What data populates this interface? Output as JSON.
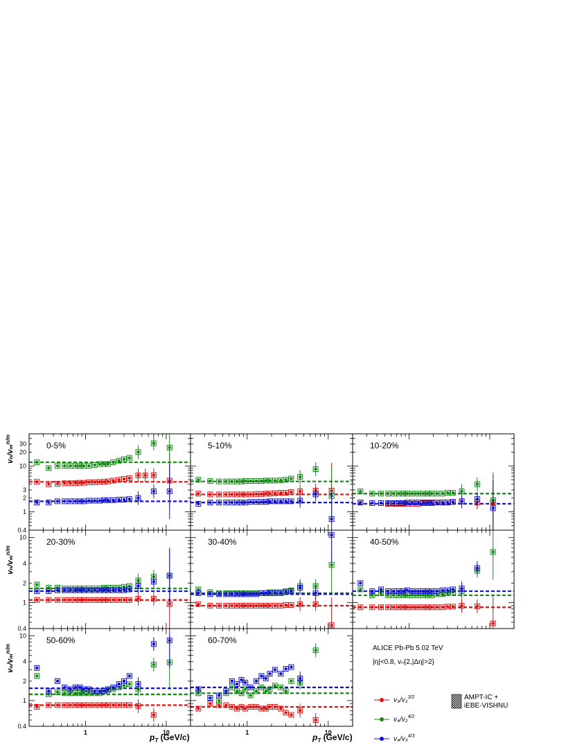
{
  "figure": {
    "experiment": "ALICE Pb-Pb 5.02 TeV",
    "selection": "|η|<0.8, vₙ{2,|Δη|>2}",
    "ylabel_main": "vₙ/vₘ",
    "ylabel_sup": "n/m",
    "xlabel_main": "p",
    "xlabel_sub": "T",
    "xlabel_unit": " (GeV/c)",
    "model_label_1": "AMPT-IC +",
    "model_label_2": "iEBE-VISHNU",
    "legend": [
      {
        "label": "v₃/v₂",
        "sup": "3/2",
        "color": "#dd1111"
      },
      {
        "label": "v₄/v₂",
        "sup": "4/2",
        "color": "#118811"
      },
      {
        "label": "v₄/v₃",
        "sup": "4/3",
        "color": "#1111cc"
      }
    ]
  },
  "chart_data": {
    "type": "scatter",
    "x_scale": "log",
    "y_scale": "log",
    "xlim": [
      0.2,
      20
    ],
    "ylim_top_row": [
      0.4,
      50
    ],
    "ylim_other_rows": [
      0.4,
      13
    ],
    "x_ticks": [
      1,
      10
    ],
    "x_tick_labels": [
      "1",
      "10"
    ],
    "y_ticks_top_row": [
      0.4,
      1,
      2,
      3,
      10,
      20,
      30
    ],
    "y_ticks_other_rows": [
      0.4,
      1,
      2,
      4,
      10
    ],
    "x_points": [
      0.25,
      0.35,
      0.45,
      0.55,
      0.65,
      0.75,
      0.85,
      0.95,
      1.1,
      1.3,
      1.5,
      1.7,
      1.9,
      2.2,
      2.6,
      3.0,
      3.5,
      4.5,
      5.5,
      7.0,
      11.0
    ],
    "series_colors": {
      "v3_v2": "#dd1111",
      "v4_v2": "#118811",
      "v4_v3": "#1111cc"
    },
    "panels": [
      {
        "label": "0-5%",
        "v3_v2": {
          "values": [
            4.5,
            4.0,
            4.1,
            4.2,
            4.2,
            4.2,
            4.3,
            4.3,
            4.4,
            4.4,
            4.5,
            4.5,
            4.6,
            4.8,
            5.0,
            5.2,
            5.4,
            6.2,
            6.2,
            6.3,
            4.8
          ],
          "ref": 4.5
        },
        "v4_v2": {
          "values": [
            12,
            9,
            10,
            10,
            10,
            10,
            10,
            10,
            10,
            10.5,
            11,
            11,
            11,
            12,
            13,
            14,
            15,
            20,
            null,
            31,
            25
          ],
          "ref": 12
        },
        "v4_v3": {
          "values": [
            1.6,
            1.6,
            1.7,
            1.7,
            1.7,
            1.7,
            1.7,
            1.7,
            1.75,
            1.75,
            1.75,
            1.8,
            1.8,
            1.8,
            1.85,
            1.85,
            1.9,
            2.0,
            null,
            2.8,
            2.8
          ],
          "ref": 1.7
        }
      },
      {
        "label": "5-10%",
        "v3_v2": {
          "values": [
            2.5,
            2.4,
            2.4,
            2.4,
            2.4,
            2.4,
            2.4,
            2.4,
            2.4,
            2.45,
            2.45,
            2.5,
            2.5,
            2.55,
            2.6,
            2.6,
            2.7,
            2.8,
            null,
            2.9,
            2.9
          ],
          "ref": 2.4
        },
        "v4_v2": {
          "values": [
            5.0,
            4.7,
            4.6,
            4.6,
            4.6,
            4.6,
            4.6,
            4.7,
            4.7,
            4.7,
            4.7,
            4.8,
            4.8,
            4.8,
            4.9,
            5.0,
            5.3,
            5.8,
            null,
            8.5,
            2.2
          ],
          "ref": 4.6
        },
        "v4_v3": {
          "values": [
            1.5,
            1.6,
            1.6,
            1.6,
            1.6,
            1.6,
            1.6,
            1.6,
            1.65,
            1.65,
            1.65,
            1.65,
            1.7,
            1.7,
            1.7,
            1.7,
            1.7,
            1.75,
            null,
            2.4,
            0.7
          ],
          "ref": 1.6
        }
      },
      {
        "label": "10-20%",
        "v3_v2": {
          "values": [
            1.6,
            1.55,
            1.55,
            1.5,
            1.5,
            1.5,
            1.5,
            1.5,
            1.5,
            1.5,
            1.55,
            1.55,
            1.55,
            1.6,
            1.6,
            1.6,
            1.65,
            1.7,
            null,
            1.6,
            1.6
          ],
          "ref": 1.5
        },
        "v4_v2": {
          "values": [
            2.8,
            2.5,
            2.5,
            2.5,
            2.5,
            2.5,
            2.5,
            2.5,
            2.5,
            2.5,
            2.5,
            2.5,
            2.5,
            2.5,
            2.5,
            2.6,
            2.6,
            2.8,
            null,
            4.0,
            1.8
          ],
          "ref": 2.5
        },
        "v4_v3": {
          "values": [
            1.6,
            1.55,
            1.55,
            1.55,
            1.55,
            1.55,
            1.55,
            1.6,
            1.6,
            1.6,
            1.6,
            1.6,
            1.6,
            1.6,
            1.6,
            1.6,
            1.65,
            1.7,
            null,
            1.9,
            1.2
          ],
          "ref": 1.5
        }
      },
      {
        "label": "20-30%",
        "v3_v2": {
          "values": [
            1.1,
            1.1,
            1.1,
            1.1,
            1.1,
            1.1,
            1.1,
            1.1,
            1.1,
            1.1,
            1.1,
            1.1,
            1.1,
            1.1,
            1.1,
            1.1,
            1.1,
            1.15,
            null,
            1.15,
            0.95
          ],
          "ref": 1.1
        },
        "v4_v2": {
          "values": [
            1.9,
            1.7,
            1.7,
            1.65,
            1.65,
            1.65,
            1.65,
            1.65,
            1.65,
            1.65,
            1.65,
            1.7,
            1.7,
            1.7,
            1.7,
            1.75,
            1.8,
            2.2,
            null,
            2.5,
            2.6
          ],
          "ref": 1.65
        },
        "v4_v3": {
          "values": [
            1.5,
            1.5,
            1.55,
            1.55,
            1.55,
            1.55,
            1.55,
            1.55,
            1.55,
            1.55,
            1.55,
            1.55,
            1.55,
            1.55,
            1.55,
            1.55,
            1.6,
            1.8,
            null,
            2.1,
            2.6
          ],
          "ref": 1.5
        }
      },
      {
        "label": "30-40%",
        "v3_v2": {
          "values": [
            0.95,
            0.9,
            0.9,
            0.9,
            0.9,
            0.9,
            0.9,
            0.9,
            0.9,
            0.9,
            0.9,
            0.9,
            0.9,
            0.9,
            0.9,
            0.92,
            0.92,
            0.95,
            null,
            0.95,
            0.45
          ],
          "ref": 0.9
        },
        "v4_v2": {
          "values": [
            1.6,
            1.45,
            1.4,
            1.4,
            1.4,
            1.4,
            1.4,
            1.4,
            1.4,
            1.4,
            1.4,
            1.4,
            1.45,
            1.45,
            1.45,
            1.5,
            1.55,
            1.8,
            null,
            1.8,
            3.8
          ],
          "ref": 1.4
        },
        "v4_v3": {
          "values": [
            1.4,
            1.35,
            1.35,
            1.35,
            1.35,
            1.35,
            1.35,
            1.35,
            1.35,
            1.35,
            1.4,
            1.4,
            1.4,
            1.4,
            1.4,
            1.45,
            1.5,
            1.7,
            null,
            1.4,
            11
          ],
          "ref": 1.35
        }
      },
      {
        "label": "40-50%",
        "v3_v2": {
          "values": [
            0.85,
            0.85,
            0.85,
            0.85,
            0.85,
            0.85,
            0.85,
            0.85,
            0.85,
            0.85,
            0.85,
            0.85,
            0.85,
            0.85,
            0.85,
            0.87,
            0.87,
            0.9,
            null,
            0.88,
            0.48
          ],
          "ref": 0.85
        },
        "v4_v2": {
          "values": [
            1.6,
            1.3,
            1.4,
            1.3,
            1.3,
            1.3,
            1.3,
            1.3,
            1.3,
            1.3,
            1.3,
            1.3,
            1.3,
            1.35,
            1.35,
            1.4,
            1.45,
            1.5,
            null,
            3.1,
            6.0
          ],
          "ref": 1.3
        },
        "v4_v3": {
          "values": [
            2.0,
            1.5,
            1.6,
            1.5,
            1.5,
            1.5,
            1.5,
            1.55,
            1.5,
            1.5,
            1.5,
            1.5,
            1.5,
            1.5,
            1.55,
            1.55,
            1.6,
            1.65,
            null,
            3.4,
            null
          ],
          "ref": 1.5
        }
      },
      {
        "label": "50-60%",
        "v3_v2": {
          "values": [
            0.8,
            0.85,
            0.85,
            0.85,
            0.85,
            0.85,
            0.85,
            0.85,
            0.85,
            0.85,
            0.85,
            0.85,
            0.85,
            0.85,
            0.85,
            0.85,
            0.85,
            0.82,
            null,
            0.6,
            null
          ],
          "ref": 0.85
        },
        "v4_v2": {
          "values": [
            2.4,
            1.25,
            1.35,
            1.3,
            1.3,
            1.3,
            1.3,
            1.3,
            1.3,
            1.3,
            1.3,
            1.4,
            1.45,
            1.5,
            1.6,
            1.7,
            1.8,
            1.5,
            null,
            3.6,
            3.9
          ],
          "ref": 1.25
        },
        "v4_v3": {
          "values": [
            3.2,
            1.4,
            2.0,
            1.6,
            1.5,
            1.6,
            1.6,
            1.5,
            1.5,
            1.4,
            1.4,
            1.4,
            1.5,
            1.6,
            1.8,
            2.0,
            2.4,
            1.8,
            null,
            7.5,
            8.5
          ],
          "ref": 1.55
        }
      },
      {
        "label": "60-70%",
        "v3_v2": {
          "values": [
            0.75,
            0.9,
            0.85,
            0.85,
            0.8,
            0.75,
            0.8,
            0.75,
            0.8,
            0.8,
            0.75,
            0.75,
            0.8,
            0.8,
            0.75,
            0.65,
            0.6,
            0.7,
            null,
            0.5,
            null
          ],
          "ref": 0.8
        },
        "v4_v2": {
          "values": [
            1.3,
            1.1,
            1.0,
            1.3,
            1.6,
            1.4,
            1.3,
            1.5,
            1.2,
            1.4,
            1.6,
            1.4,
            1.5,
            1.7,
            1.6,
            1.4,
            2.0,
            1.9,
            null,
            6.0,
            null
          ],
          "ref": 1.3
        },
        "v4_v3": {
          "values": [
            1.5,
            1.1,
            1.2,
            1.4,
            2.0,
            1.8,
            2.1,
            1.9,
            1.6,
            2.0,
            2.4,
            2.2,
            2.6,
            3.0,
            2.6,
            3.1,
            3.3,
            2.2,
            null,
            null,
            null
          ],
          "ref": 1.6
        }
      }
    ]
  }
}
